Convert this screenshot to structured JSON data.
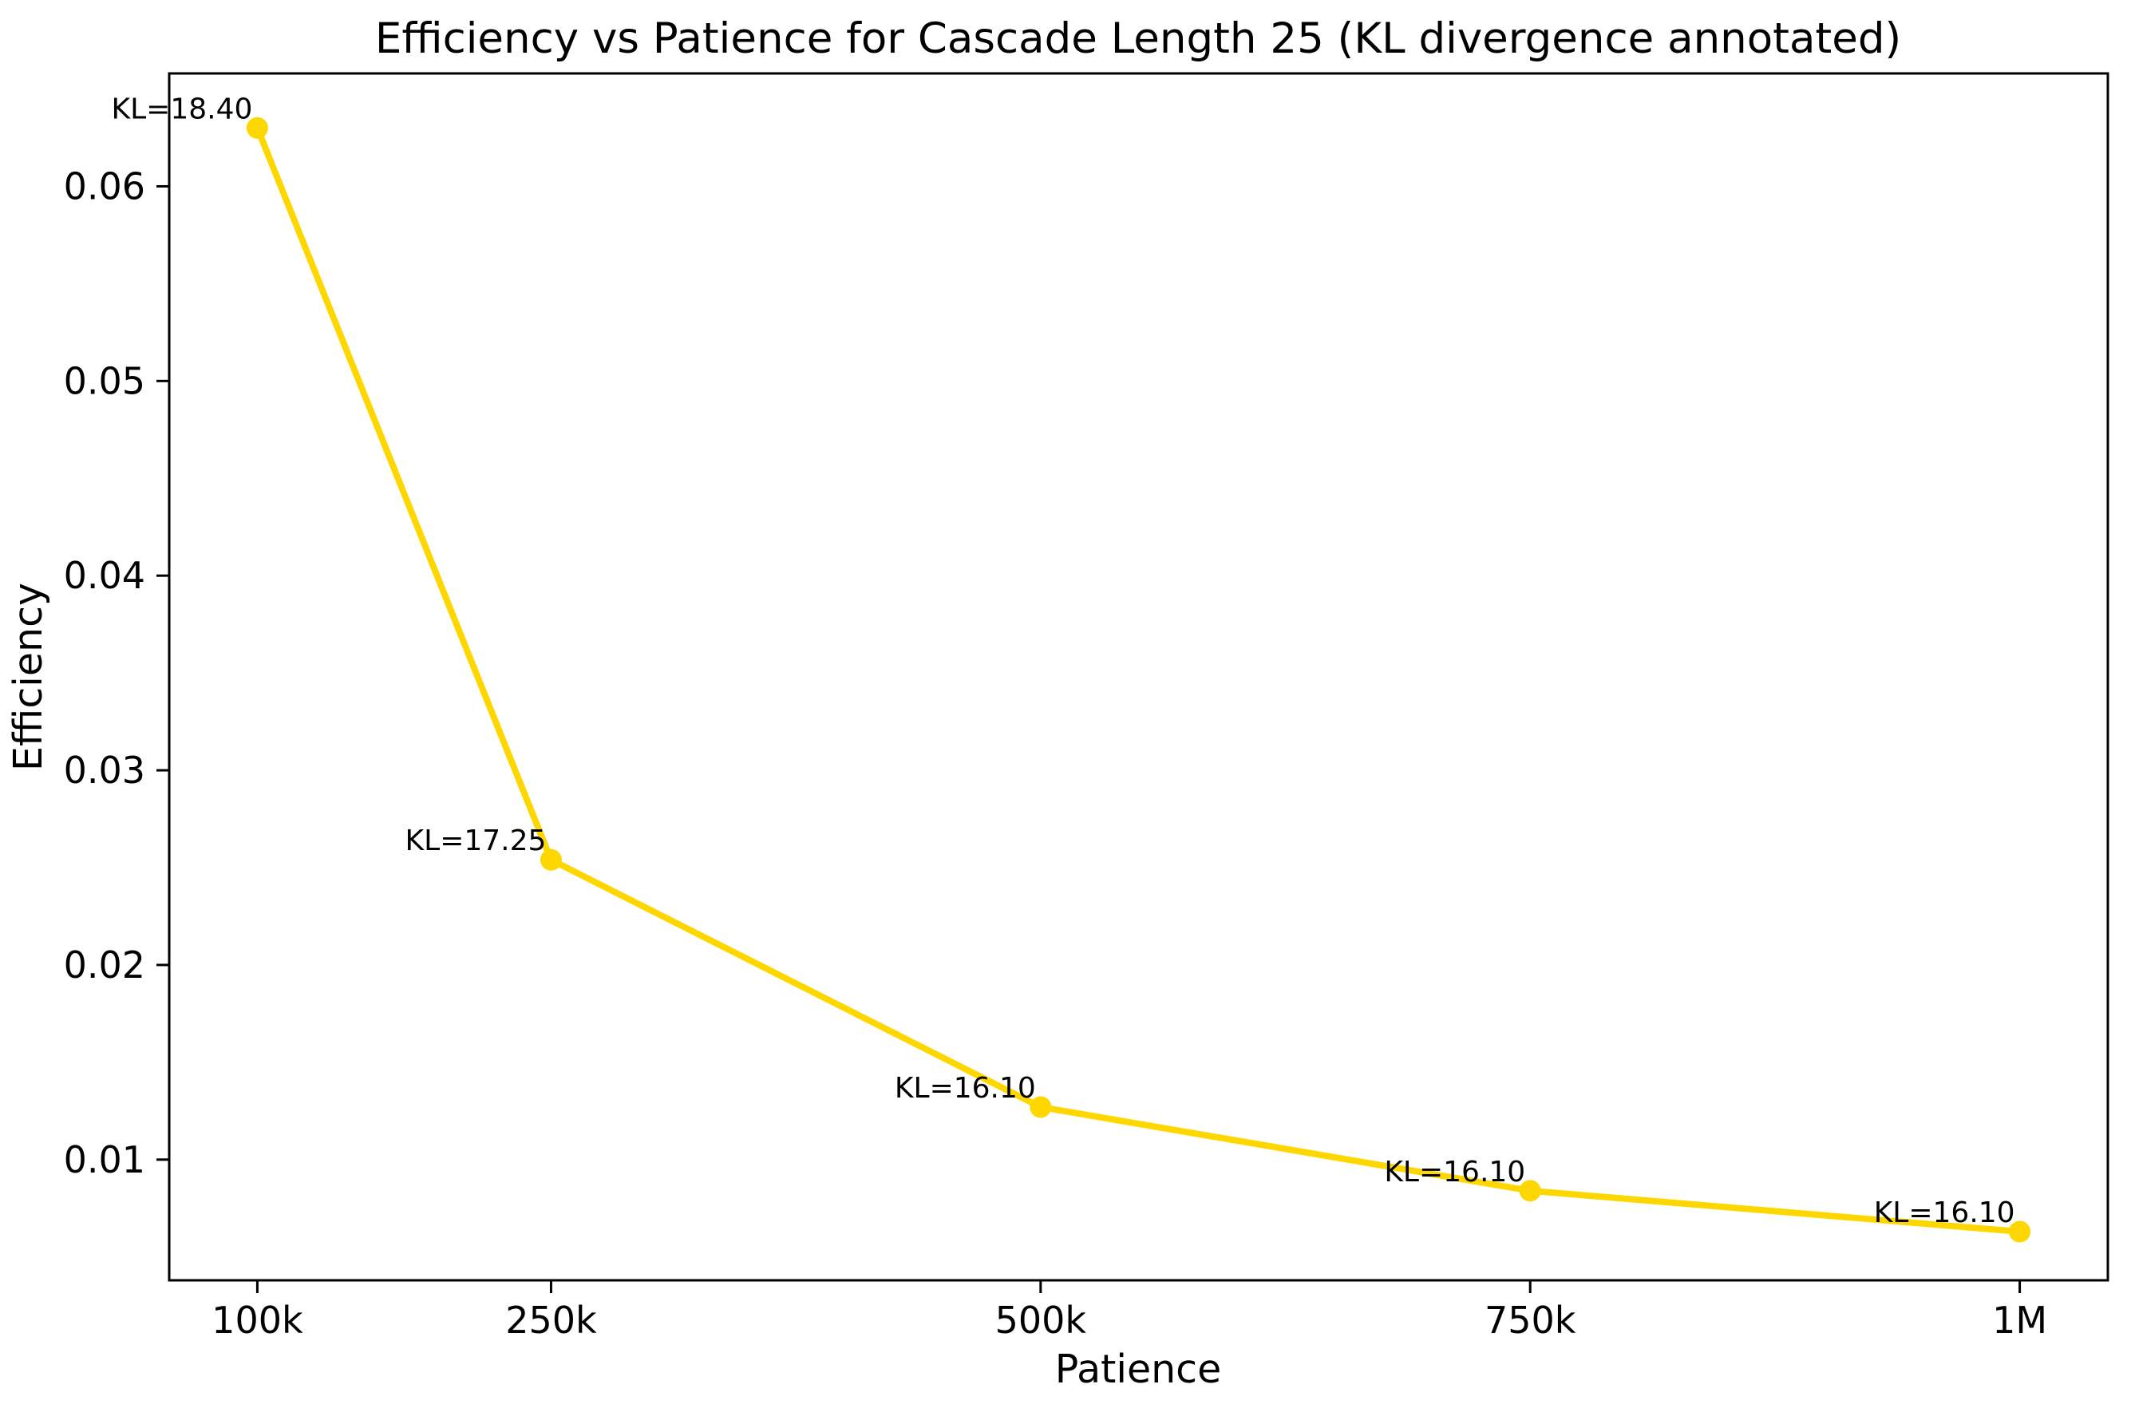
{
  "chart_data": {
    "type": "line",
    "title": "Efficiency vs Patience for Cascade Length 25 (KL divergence annotated)",
    "xlabel": "Patience",
    "ylabel": "Efficiency",
    "grid": false,
    "legend": null,
    "line_color": "#FFD700",
    "marker_color": "#FFD700",
    "annotation_color": "#FF0000",
    "axis_color": "#000000",
    "background_color": "#ffffff",
    "x_axis": {
      "label": "Patience",
      "tick_values": [
        100000,
        250000,
        500000,
        750000,
        1000000
      ],
      "tick_labels": [
        "100k",
        "250k",
        "500k",
        "750k",
        "1M"
      ],
      "lim": [
        55000,
        1045000
      ]
    },
    "y_axis": {
      "label": "Efficiency",
      "tick_values": [
        0.01,
        0.02,
        0.03,
        0.04,
        0.05,
        0.06
      ],
      "tick_labels": [
        "0.01",
        "0.02",
        "0.03",
        "0.04",
        "0.05",
        "0.06"
      ],
      "lim": [
        0.0038,
        0.0658
      ]
    },
    "series": [
      {
        "name": "Efficiency vs Patience",
        "x": [
          100000,
          250000,
          500000,
          750000,
          1000000
        ],
        "y": [
          0.063,
          0.0254,
          0.0127,
          0.0084,
          0.0063
        ],
        "annotations": [
          "KL=18.40",
          "KL=17.25",
          "KL=16.10",
          "KL=16.10",
          "KL=16.10"
        ]
      }
    ]
  }
}
